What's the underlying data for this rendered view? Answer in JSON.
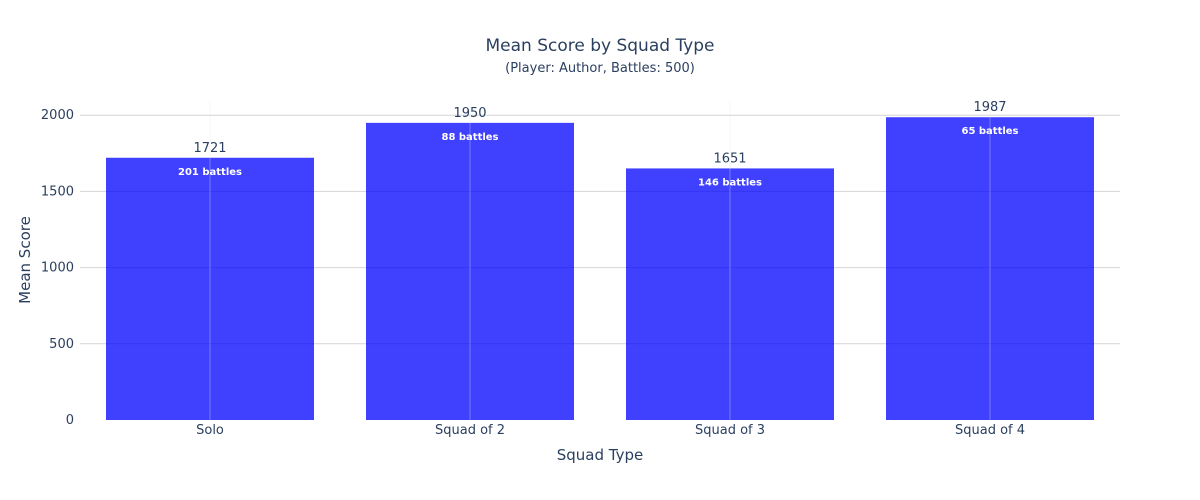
{
  "chart_data": {
    "type": "bar",
    "title": "Mean Score by Squad Type",
    "subtitle": "(Player: Author, Battles: 500)",
    "xlabel": "Squad Type",
    "ylabel": "Mean Score",
    "categories": [
      "Solo",
      "Squad of 2",
      "Squad of 3",
      "Squad of 4"
    ],
    "values": [
      1721,
      1950,
      1651,
      1987
    ],
    "value_labels": [
      "1721",
      "1950",
      "1651",
      "1987"
    ],
    "inner_labels": [
      "201 battles",
      "88 battles",
      "146 battles",
      "65 battles"
    ],
    "ylim": [
      0,
      2100
    ],
    "yticks": [
      0,
      500,
      1000,
      1500,
      2000
    ],
    "ytick_labels": [
      "0",
      "500",
      "1000",
      "1500",
      "2000"
    ],
    "grid": true,
    "bar_color": "#0000ff"
  }
}
